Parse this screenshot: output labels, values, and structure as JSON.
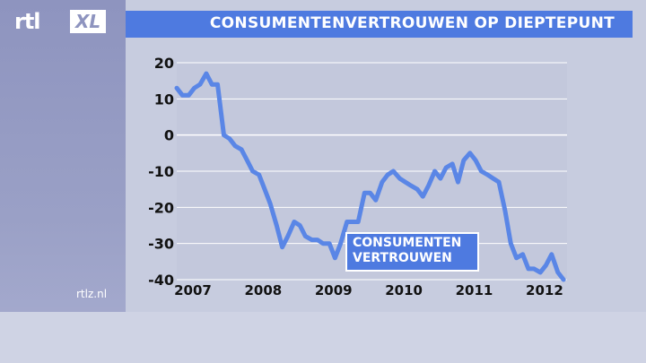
{
  "header": {
    "logo_text": "rtl",
    "logo_badge": "XL",
    "title": "CONSUMENTENVERTROUWEN OP DIEPTEPUNT"
  },
  "footer": {
    "site": "rtlz.nl"
  },
  "colors": {
    "line": "#5a86e6",
    "title_bar": "#4e7ae0",
    "plot_bg": "#c3c8dc",
    "grid": "#ffffff"
  },
  "chart_data": {
    "type": "line",
    "title": "CONSUMENTENVERTROUWEN OP DIEPTEPUNT",
    "xlabel": "",
    "ylabel": "",
    "ylim": [
      -40,
      20
    ],
    "xlim": [
      2007.0,
      2012.55
    ],
    "y_ticks": [
      20,
      10,
      0,
      -10,
      -20,
      -30,
      -40
    ],
    "x_ticks": [
      "2007",
      "2008",
      "2009",
      "2010",
      "2011",
      "2012"
    ],
    "grid": true,
    "legend": "CONSUMENTEN VERTROUWEN",
    "series": [
      {
        "name": "CONSUMENTEN VERTROUWEN",
        "points": [
          [
            2007.0,
            13
          ],
          [
            2007.08,
            11
          ],
          [
            2007.17,
            11
          ],
          [
            2007.25,
            13
          ],
          [
            2007.33,
            14
          ],
          [
            2007.42,
            17
          ],
          [
            2007.5,
            14
          ],
          [
            2007.58,
            14
          ],
          [
            2007.67,
            0
          ],
          [
            2007.75,
            -1
          ],
          [
            2007.83,
            -3
          ],
          [
            2007.92,
            -4
          ],
          [
            2008.0,
            -7
          ],
          [
            2008.08,
            -10
          ],
          [
            2008.17,
            -11
          ],
          [
            2008.25,
            -15
          ],
          [
            2008.33,
            -19
          ],
          [
            2008.42,
            -25
          ],
          [
            2008.5,
            -31
          ],
          [
            2008.58,
            -28
          ],
          [
            2008.67,
            -24
          ],
          [
            2008.75,
            -25
          ],
          [
            2008.83,
            -28
          ],
          [
            2008.92,
            -29
          ],
          [
            2009.0,
            -29
          ],
          [
            2009.08,
            -30
          ],
          [
            2009.17,
            -30
          ],
          [
            2009.25,
            -34
          ],
          [
            2009.33,
            -30
          ],
          [
            2009.42,
            -24
          ],
          [
            2009.5,
            -24
          ],
          [
            2009.58,
            -24
          ],
          [
            2009.67,
            -16
          ],
          [
            2009.75,
            -16
          ],
          [
            2009.83,
            -18
          ],
          [
            2009.92,
            -13
          ],
          [
            2010.0,
            -11
          ],
          [
            2010.08,
            -10
          ],
          [
            2010.17,
            -12
          ],
          [
            2010.25,
            -13
          ],
          [
            2010.33,
            -14
          ],
          [
            2010.42,
            -15
          ],
          [
            2010.5,
            -17
          ],
          [
            2010.58,
            -14
          ],
          [
            2010.67,
            -10
          ],
          [
            2010.75,
            -12
          ],
          [
            2010.83,
            -9
          ],
          [
            2010.92,
            -8
          ],
          [
            2011.0,
            -13
          ],
          [
            2011.08,
            -7
          ],
          [
            2011.17,
            -5
          ],
          [
            2011.25,
            -7
          ],
          [
            2011.33,
            -10
          ],
          [
            2011.42,
            -11
          ],
          [
            2011.5,
            -12
          ],
          [
            2011.58,
            -13
          ],
          [
            2011.67,
            -21
          ],
          [
            2011.75,
            -30
          ],
          [
            2011.83,
            -34
          ],
          [
            2011.92,
            -33
          ],
          [
            2012.0,
            -37
          ],
          [
            2012.08,
            -37
          ],
          [
            2012.17,
            -38
          ],
          [
            2012.25,
            -36
          ],
          [
            2012.33,
            -33
          ],
          [
            2012.42,
            -38
          ],
          [
            2012.5,
            -40
          ]
        ]
      }
    ]
  }
}
